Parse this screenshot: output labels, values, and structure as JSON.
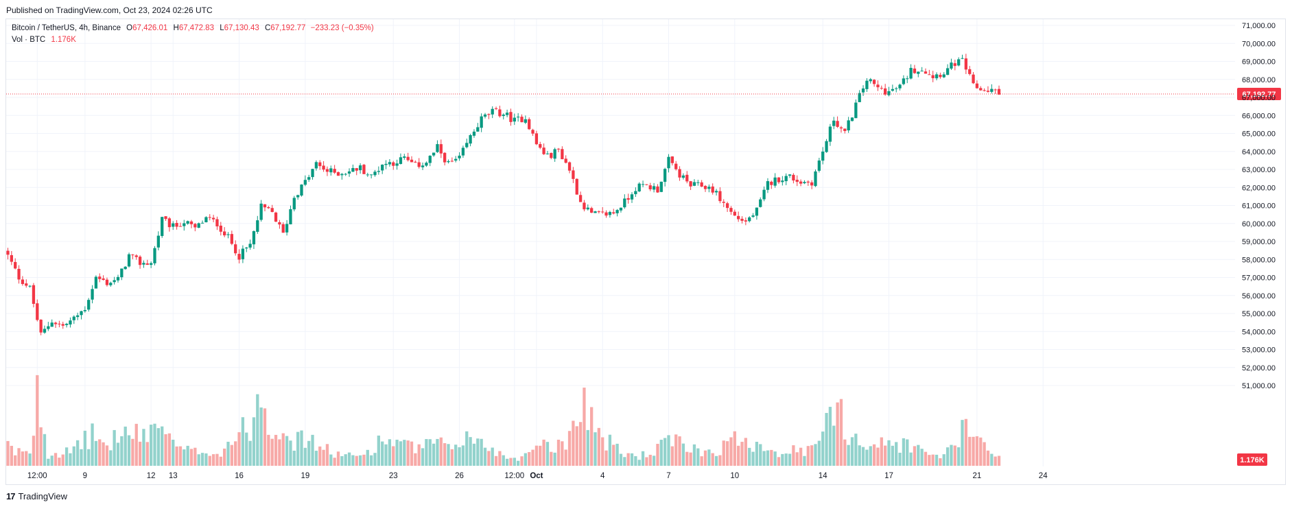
{
  "header": {
    "published": "Published on TradingView.com, Oct 23, 2024 02:26 UTC"
  },
  "legend": {
    "title": "Bitcoin / TetherUS, 4h, Binance",
    "o_key": "O",
    "o_val": "67,426.01",
    "h_key": "H",
    "h_val": "67,472.83",
    "l_key": "L",
    "l_val": "67,130.43",
    "c_key": "C",
    "c_val": "67,192.77",
    "change": "−233.23 (−0.35%)",
    "vol_title": "Vol · BTC",
    "vol_val": "1.176K"
  },
  "footer": {
    "logo": "17",
    "brand": "TradingView"
  },
  "colors": {
    "up": "#089981",
    "down": "#f23645",
    "vol_up": "#92d2cc",
    "vol_down": "#f7a9a7",
    "grid": "#f0f3fa"
  },
  "chart_data": {
    "type": "candlestick",
    "symbol": "Bitcoin / TetherUS",
    "interval": "4h",
    "exchange": "Binance",
    "y_ticks": [
      "71,000.00",
      "70,000.00",
      "69,000.00",
      "68,000.00",
      "67,000.00",
      "66,000.00",
      "65,000.00",
      "64,000.00",
      "63,000.00",
      "62,000.00",
      "61,000.00",
      "60,000.00",
      "59,000.00",
      "58,000.00",
      "57,000.00",
      "56,000.00",
      "55,000.00",
      "54,000.00",
      "53,000.00",
      "52,000.00",
      "51,000.00"
    ],
    "ylim": [
      50800,
      71200
    ],
    "x_ticks": [
      {
        "label": "12:00",
        "bar": 8,
        "bold": false
      },
      {
        "label": "9",
        "bar": 21,
        "bold": false
      },
      {
        "label": "12",
        "bar": 39,
        "bold": false
      },
      {
        "label": "13",
        "bar": 45,
        "bold": false
      },
      {
        "label": "16",
        "bar": 63,
        "bold": false
      },
      {
        "label": "19",
        "bar": 81,
        "bold": false
      },
      {
        "label": "23",
        "bar": 105,
        "bold": false
      },
      {
        "label": "26",
        "bar": 123,
        "bold": false
      },
      {
        "label": "12:00",
        "bar": 138,
        "bold": false
      },
      {
        "label": "Oct",
        "bar": 144,
        "bold": true
      },
      {
        "label": "4",
        "bar": 162,
        "bold": false
      },
      {
        "label": "7",
        "bar": 180,
        "bold": false
      },
      {
        "label": "10",
        "bar": 198,
        "bold": false
      },
      {
        "label": "14",
        "bar": 222,
        "bold": false
      },
      {
        "label": "17",
        "bar": 240,
        "bold": false
      },
      {
        "label": "21",
        "bar": 264,
        "bold": false
      },
      {
        "label": "24",
        "bar": 282,
        "bold": false
      }
    ],
    "last_price": 67192.77,
    "last_price_label": "67,192.77",
    "last_volume_label": "1.176K",
    "volume_max": 5000,
    "close_path": [
      [
        0,
        58200
      ],
      [
        3,
        57000
      ],
      [
        6,
        56400
      ],
      [
        9,
        53800
      ],
      [
        12,
        54600
      ],
      [
        15,
        54300
      ],
      [
        18,
        54700
      ],
      [
        21,
        55300
      ],
      [
        24,
        57000
      ],
      [
        27,
        56700
      ],
      [
        30,
        56900
      ],
      [
        33,
        58200
      ],
      [
        36,
        57800
      ],
      [
        39,
        57800
      ],
      [
        42,
        60200
      ],
      [
        45,
        59800
      ],
      [
        48,
        60100
      ],
      [
        51,
        59700
      ],
      [
        54,
        60300
      ],
      [
        57,
        60000
      ],
      [
        60,
        59200
      ],
      [
        63,
        58200
      ],
      [
        66,
        58800
      ],
      [
        69,
        60900
      ],
      [
        72,
        60600
      ],
      [
        75,
        59400
      ],
      [
        78,
        61500
      ],
      [
        81,
        62300
      ],
      [
        84,
        63300
      ],
      [
        87,
        62900
      ],
      [
        90,
        62800
      ],
      [
        93,
        62900
      ],
      [
        96,
        63100
      ],
      [
        99,
        62600
      ],
      [
        102,
        63300
      ],
      [
        105,
        63400
      ],
      [
        108,
        63600
      ],
      [
        111,
        63200
      ],
      [
        114,
        63400
      ],
      [
        117,
        64200
      ],
      [
        120,
        63300
      ],
      [
        123,
        63600
      ],
      [
        126,
        64800
      ],
      [
        129,
        65800
      ],
      [
        132,
        66200
      ],
      [
        135,
        66100
      ],
      [
        138,
        65700
      ],
      [
        141,
        65900
      ],
      [
        144,
        64400
      ],
      [
        147,
        63700
      ],
      [
        150,
        64100
      ],
      [
        153,
        63000
      ],
      [
        156,
        61200
      ],
      [
        159,
        60500
      ],
      [
        162,
        60500
      ],
      [
        165,
        60600
      ],
      [
        168,
        61200
      ],
      [
        171,
        62000
      ],
      [
        174,
        62100
      ],
      [
        177,
        61900
      ],
      [
        180,
        63500
      ],
      [
        183,
        62700
      ],
      [
        186,
        62100
      ],
      [
        189,
        62100
      ],
      [
        192,
        61900
      ],
      [
        195,
        61100
      ],
      [
        198,
        60400
      ],
      [
        201,
        60100
      ],
      [
        204,
        60700
      ],
      [
        207,
        62200
      ],
      [
        210,
        62500
      ],
      [
        213,
        62600
      ],
      [
        216,
        62300
      ],
      [
        219,
        62300
      ],
      [
        222,
        64000
      ],
      [
        225,
        65800
      ],
      [
        228,
        65000
      ],
      [
        231,
        66600
      ],
      [
        234,
        68000
      ],
      [
        237,
        67500
      ],
      [
        240,
        67300
      ],
      [
        243,
        67600
      ],
      [
        246,
        68500
      ],
      [
        249,
        68600
      ],
      [
        252,
        68200
      ],
      [
        255,
        68400
      ],
      [
        258,
        68900
      ],
      [
        260,
        69000
      ],
      [
        261,
        68600
      ],
      [
        263,
        67600
      ],
      [
        266,
        67400
      ],
      [
        268,
        67400
      ],
      [
        270,
        67193
      ]
    ],
    "volume_profile": [
      [
        0,
        1100
      ],
      [
        2,
        500
      ],
      [
        4,
        900
      ],
      [
        6,
        700
      ],
      [
        7,
        2000
      ],
      [
        8,
        4500
      ],
      [
        9,
        3000
      ],
      [
        11,
        600
      ],
      [
        14,
        700
      ],
      [
        18,
        700
      ],
      [
        20,
        1300
      ],
      [
        24,
        1600
      ],
      [
        27,
        900
      ],
      [
        30,
        1700
      ],
      [
        36,
        1500
      ],
      [
        39,
        1900
      ],
      [
        42,
        2200
      ],
      [
        45,
        1000
      ],
      [
        50,
        700
      ],
      [
        54,
        800
      ],
      [
        58,
        600
      ],
      [
        60,
        1200
      ],
      [
        63,
        1600
      ],
      [
        66,
        2100
      ],
      [
        69,
        3900
      ],
      [
        72,
        1700
      ],
      [
        75,
        2400
      ],
      [
        78,
        1200
      ],
      [
        81,
        1400
      ],
      [
        84,
        1100
      ],
      [
        88,
        700
      ],
      [
        92,
        500
      ],
      [
        96,
        500
      ],
      [
        99,
        900
      ],
      [
        102,
        1300
      ],
      [
        105,
        1300
      ],
      [
        108,
        1000
      ],
      [
        111,
        900
      ],
      [
        114,
        1000
      ],
      [
        117,
        1200
      ],
      [
        120,
        800
      ],
      [
        124,
        1500
      ],
      [
        128,
        1200
      ],
      [
        132,
        900
      ],
      [
        135,
        500
      ],
      [
        138,
        400
      ],
      [
        141,
        500
      ],
      [
        144,
        1300
      ],
      [
        147,
        1200
      ],
      [
        150,
        1000
      ],
      [
        153,
        1500
      ],
      [
        156,
        3800
      ],
      [
        159,
        2400
      ],
      [
        162,
        1400
      ],
      [
        165,
        1000
      ],
      [
        168,
        600
      ],
      [
        172,
        500
      ],
      [
        176,
        700
      ],
      [
        180,
        1300
      ],
      [
        183,
        1100
      ],
      [
        186,
        900
      ],
      [
        189,
        800
      ],
      [
        192,
        700
      ],
      [
        195,
        1000
      ],
      [
        198,
        1300
      ],
      [
        201,
        1500
      ],
      [
        204,
        1100
      ],
      [
        207,
        1000
      ],
      [
        210,
        700
      ],
      [
        213,
        800
      ],
      [
        216,
        700
      ],
      [
        219,
        800
      ],
      [
        222,
        1900
      ],
      [
        225,
        2400
      ],
      [
        226,
        5000
      ],
      [
        228,
        1700
      ],
      [
        231,
        1500
      ],
      [
        234,
        1000
      ],
      [
        237,
        1100
      ],
      [
        240,
        1100
      ],
      [
        243,
        1100
      ],
      [
        246,
        1100
      ],
      [
        249,
        700
      ],
      [
        252,
        500
      ],
      [
        255,
        600
      ],
      [
        258,
        1000
      ],
      [
        261,
        2000
      ],
      [
        264,
        1300
      ],
      [
        266,
        1300
      ],
      [
        268,
        900
      ],
      [
        270,
        400
      ]
    ]
  }
}
